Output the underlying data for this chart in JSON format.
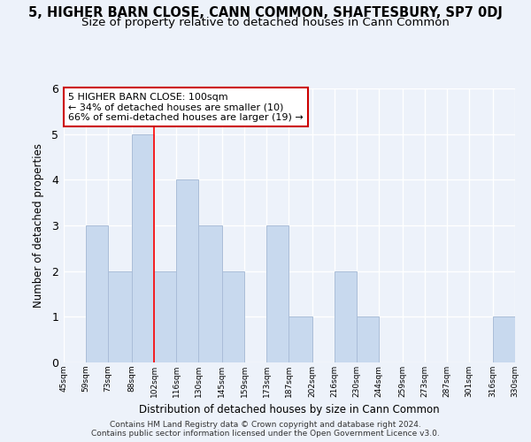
{
  "title": "5, HIGHER BARN CLOSE, CANN COMMON, SHAFTESBURY, SP7 0DJ",
  "subtitle": "Size of property relative to detached houses in Cann Common",
  "xlabel": "Distribution of detached houses by size in Cann Common",
  "ylabel": "Number of detached properties",
  "bin_edges": [
    45,
    59,
    73,
    88,
    102,
    116,
    130,
    145,
    159,
    173,
    187,
    202,
    216,
    230,
    244,
    259,
    273,
    287,
    301,
    316,
    330
  ],
  "bar_heights": [
    0,
    3,
    2,
    5,
    2,
    4,
    3,
    2,
    0,
    3,
    1,
    0,
    2,
    1,
    0,
    0,
    0,
    0,
    0,
    1
  ],
  "bar_color": "#c8d9ee",
  "bar_edge_color": "#aabdd8",
  "red_line_x": 102,
  "ylim": [
    0,
    6
  ],
  "yticks": [
    0,
    1,
    2,
    3,
    4,
    5,
    6
  ],
  "annotation_title": "5 HIGHER BARN CLOSE: 100sqm",
  "annotation_line1": "← 34% of detached houses are smaller (10)",
  "annotation_line2": "66% of semi-detached houses are larger (19) →",
  "annotation_box_color": "#ffffff",
  "annotation_box_edge_color": "#cc0000",
  "bg_color": "#edf2fa",
  "grid_color": "#ffffff",
  "footer_line1": "Contains HM Land Registry data © Crown copyright and database right 2024.",
  "footer_line2": "Contains public sector information licensed under the Open Government Licence v3.0.",
  "title_fontsize": 10.5,
  "subtitle_fontsize": 9.5
}
